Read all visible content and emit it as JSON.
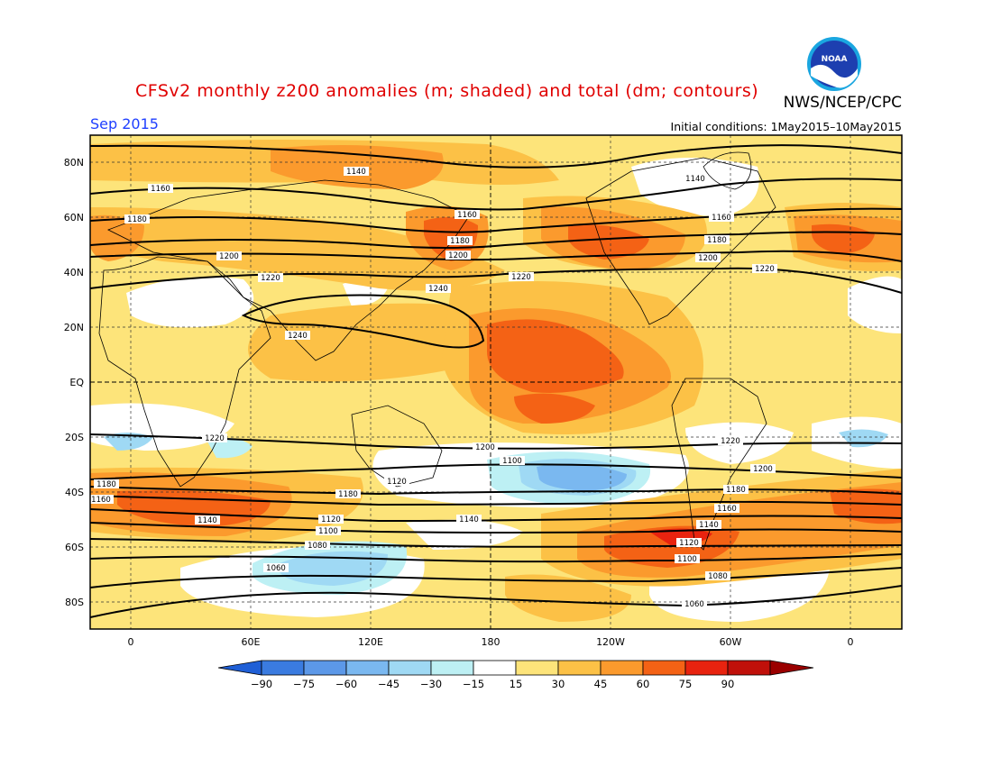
{
  "header": {
    "title": "CFSv2 monthly z200 anomalies (m; shaded) and total (dm; contours)",
    "agency": "NWS/NCEP/CPC",
    "month": "Sep 2015",
    "initial_conditions": "Initial conditions: 1May2015–10May2015",
    "logo_text": "NOAA"
  },
  "map": {
    "lat_labels": [
      "80N",
      "60N",
      "40N",
      "20N",
      "EQ",
      "20S",
      "40S",
      "60S",
      "80S"
    ],
    "lon_labels": [
      "0",
      "60E",
      "120E",
      "180",
      "120W",
      "60W",
      "0"
    ],
    "contour_labels": [
      "1140",
      "1160",
      "1180",
      "1200",
      "1220",
      "1240",
      "1240",
      "1220",
      "1200",
      "1180",
      "1160",
      "1140",
      "1160",
      "1180",
      "1200",
      "1220",
      "1220",
      "1200",
      "1180",
      "1160",
      "1140",
      "1120",
      "1100",
      "1080",
      "1060",
      "1180",
      "1140",
      "1120",
      "1100",
      "1080",
      "1060",
      "1180",
      "1160",
      "1140",
      "1120",
      "1100",
      "1200",
      "1220"
    ],
    "colors": {
      "ocean_bg": "#fde47a",
      "pos_15": "#fde47a",
      "pos_30": "#fcc146",
      "pos_45": "#fb9a2d",
      "pos_60": "#f46215",
      "pos_75": "#e8230f",
      "neutral": "#ffffff",
      "neg_15": "#bdf0f4",
      "neg_30": "#9fd9f4",
      "neg_45": "#7ab8f0"
    }
  },
  "colorbar": {
    "labels": [
      "-90",
      "-75",
      "-60",
      "-45",
      "-30",
      "-15",
      "15",
      "30",
      "45",
      "60",
      "75",
      "90"
    ],
    "colors": [
      "#1f5fd6",
      "#3a7be0",
      "#5c98e8",
      "#7ab8f0",
      "#9fd9f4",
      "#bdf0f4",
      "#ffffff",
      "#fde47a",
      "#fcc146",
      "#fb9a2d",
      "#f46215",
      "#e8230f",
      "#c0100a",
      "#9a0000"
    ]
  }
}
